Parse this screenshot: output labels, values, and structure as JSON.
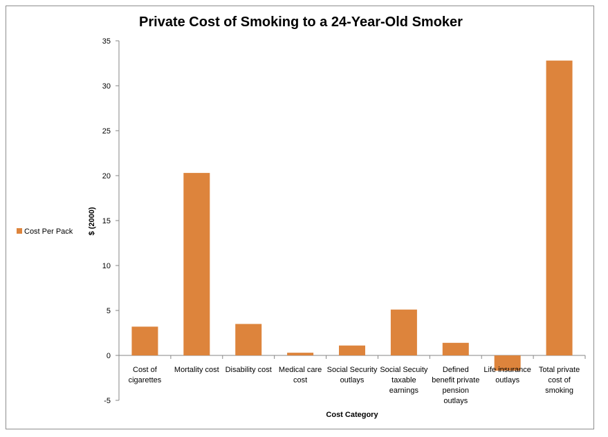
{
  "chart_data": {
    "type": "bar",
    "title": "Private Cost of Smoking to a 24-Year-Old Smoker",
    "xlabel": "Cost Category",
    "ylabel": "$ (2000)",
    "ylim": [
      -5,
      35
    ],
    "yticks": [
      -5,
      0,
      5,
      10,
      15,
      20,
      25,
      30,
      35
    ],
    "grid": false,
    "legend_position": "left",
    "color": "#dd843c",
    "categories": [
      [
        "Cost of",
        "cigarettes"
      ],
      [
        "Mortality cost"
      ],
      [
        "Disability cost"
      ],
      [
        "Medical care",
        "cost"
      ],
      [
        "Social Security",
        "outlays"
      ],
      [
        "Social Secuity",
        "taxable",
        "earnings"
      ],
      [
        "Defined",
        "benefit private",
        "pension",
        "outlays"
      ],
      [
        "Life insurance",
        "outlays"
      ],
      [
        "Total private",
        "cost of",
        "smoking"
      ]
    ],
    "series": [
      {
        "name": "Cost Per Pack",
        "values": [
          3.2,
          20.3,
          3.5,
          0.3,
          1.1,
          5.1,
          1.4,
          -1.7,
          32.8
        ]
      }
    ]
  }
}
